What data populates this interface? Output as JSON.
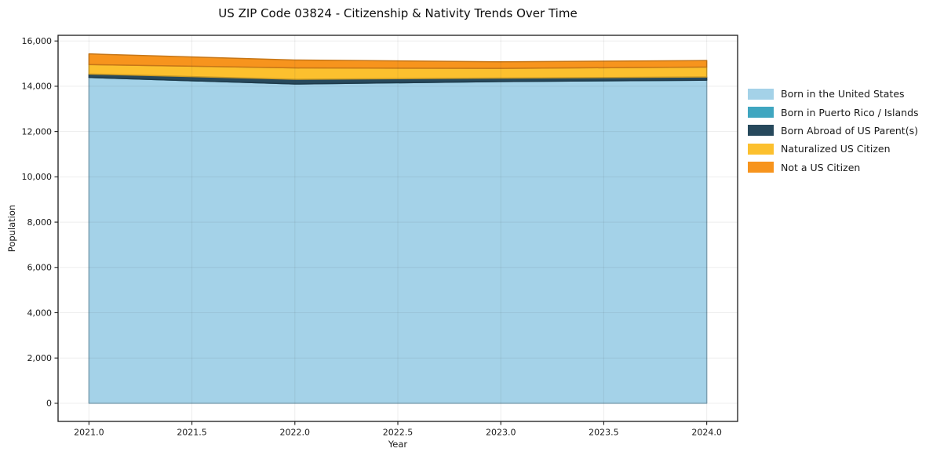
{
  "title": "US ZIP Code 03824 - Citizenship & Nativity Trends Over Time",
  "chart_data": {
    "type": "area",
    "stacked": true,
    "title": "US ZIP Code 03824 - Citizenship & Nativity Trends Over Time",
    "xlabel": "Year",
    "ylabel": "Population",
    "x": [
      2021,
      2022,
      2023,
      2024
    ],
    "series": [
      {
        "name": "Born in the United States",
        "color": "#A4D2E8",
        "values": [
          14390,
          14100,
          14210,
          14270
        ]
      },
      {
        "name": "Born in Puerto Rico / Islands",
        "color": "#3FA6C0",
        "values": [
          0,
          0,
          0,
          0
        ]
      },
      {
        "name": "Born Abroad of US Parent(s)",
        "color": "#27495C",
        "values": [
          150,
          210,
          150,
          140
        ]
      },
      {
        "name": "Naturalized US Citizen",
        "color": "#FCC02E",
        "values": [
          420,
          500,
          430,
          440
        ]
      },
      {
        "name": "Not a US Citizen",
        "color": "#F7941D",
        "values": [
          470,
          350,
          290,
          285
        ]
      }
    ],
    "totals": [
      15430,
      15160,
      15080,
      15135
    ],
    "xlim": [
      2020.85,
      2024.15
    ],
    "ylim": [
      -800,
      16250
    ],
    "x_ticks": [
      {
        "v": 2021.0,
        "label": "2021.0"
      },
      {
        "v": 2021.5,
        "label": "2021.5"
      },
      {
        "v": 2022.0,
        "label": "2022.0"
      },
      {
        "v": 2022.5,
        "label": "2022.5"
      },
      {
        "v": 2023.0,
        "label": "2023.0"
      },
      {
        "v": 2023.5,
        "label": "2023.5"
      },
      {
        "v": 2024.0,
        "label": "2024.0"
      }
    ],
    "y_ticks": [
      {
        "v": 0,
        "label": "0"
      },
      {
        "v": 2000,
        "label": "2,000"
      },
      {
        "v": 4000,
        "label": "4,000"
      },
      {
        "v": 6000,
        "label": "6,000"
      },
      {
        "v": 8000,
        "label": "8,000"
      },
      {
        "v": 10000,
        "label": "10,000"
      },
      {
        "v": 12000,
        "label": "12,000"
      },
      {
        "v": 14000,
        "label": "14,000"
      },
      {
        "v": 16000,
        "label": "16,000"
      }
    ],
    "grid": true,
    "legend_position": "right"
  }
}
